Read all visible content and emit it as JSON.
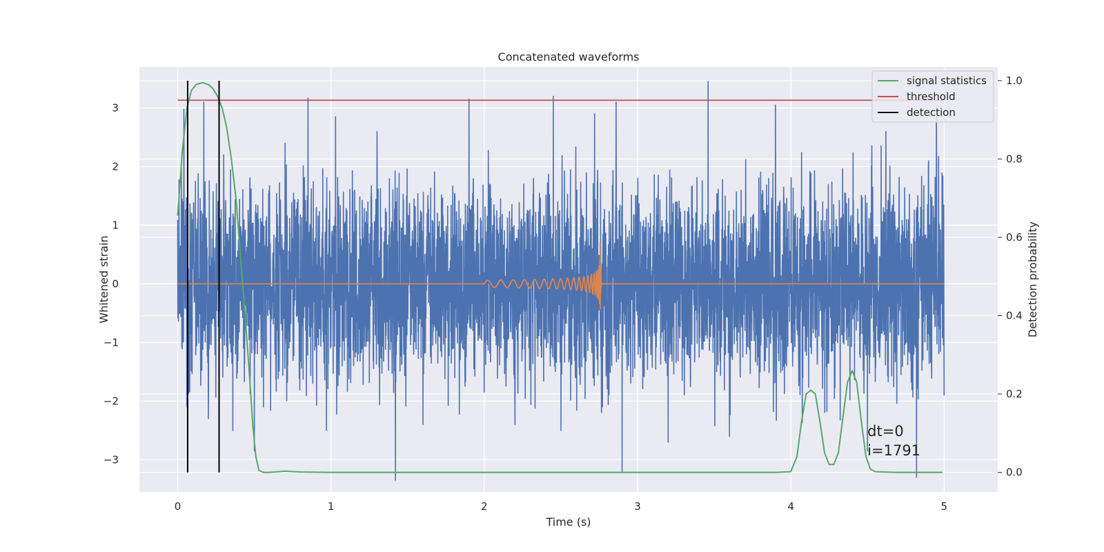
{
  "chart_data": {
    "type": "line",
    "title": "Concatenated waveforms",
    "xlabel": "Time (s)",
    "ylabel": "Whitened strain",
    "ylabel_right": "Detection probability",
    "xlim": [
      -0.25,
      5.35
    ],
    "ylim": [
      -3.55,
      3.7
    ],
    "ylim_right": [
      -0.05,
      1.035
    ],
    "x_ticks": [
      0,
      1,
      2,
      3,
      4,
      5
    ],
    "y_ticks": [
      -3,
      -2,
      -1,
      0,
      1,
      2,
      3
    ],
    "y_ticks_right": [
      0.0,
      0.2,
      0.4,
      0.6,
      0.8,
      1.0
    ],
    "y_tick_labels": [
      "−3",
      "−2",
      "−1",
      "0",
      "1",
      "2",
      "3"
    ],
    "y_tick_labels_right": [
      "0.0",
      "0.2",
      "0.4",
      "0.6",
      "0.8",
      "1.0"
    ],
    "grid": true,
    "legend_position": "top-right",
    "colors": {
      "strain": "#4c72b0",
      "template": "#dd8452",
      "signal": "#55a868",
      "threshold": "#c44e52",
      "detection": "#000000",
      "background": "#eaeaf2",
      "grid": "#ffffff"
    },
    "strain_noise": {
      "x_start": 0.0,
      "x_end": 5.0,
      "sigma": 0.85,
      "axis": "left"
    },
    "spikes": [
      {
        "x": 0.04,
        "y": 2.98
      },
      {
        "x": 0.06,
        "y": -2.1
      },
      {
        "x": 0.17,
        "y": 3.1
      },
      {
        "x": 0.2,
        "y": -2.3
      },
      {
        "x": 0.3,
        "y": 2.2
      },
      {
        "x": 0.36,
        "y": -2.5
      },
      {
        "x": 0.5,
        "y": -2.85
      },
      {
        "x": 0.7,
        "y": 2.4
      },
      {
        "x": 0.85,
        "y": 3.17
      },
      {
        "x": 0.97,
        "y": -2.5
      },
      {
        "x": 1.03,
        "y": 2.85
      },
      {
        "x": 1.3,
        "y": 2.6
      },
      {
        "x": 1.42,
        "y": -3.35
      },
      {
        "x": 1.6,
        "y": -2.4
      },
      {
        "x": 1.9,
        "y": 3.15
      },
      {
        "x": 2.2,
        "y": -2.4
      },
      {
        "x": 2.45,
        "y": 3.2
      },
      {
        "x": 2.5,
        "y": -2.5
      },
      {
        "x": 2.72,
        "y": 2.9
      },
      {
        "x": 2.86,
        "y": 3.1
      },
      {
        "x": 2.9,
        "y": -3.2
      },
      {
        "x": 3.2,
        "y": -2.7
      },
      {
        "x": 3.46,
        "y": 3.45
      },
      {
        "x": 3.6,
        "y": -2.6
      },
      {
        "x": 3.9,
        "y": 3.05
      },
      {
        "x": 4.5,
        "y": -2.85
      },
      {
        "x": 4.62,
        "y": 2.6
      },
      {
        "x": 4.82,
        "y": -3.3
      },
      {
        "x": 4.95,
        "y": 2.9
      }
    ],
    "template_wave": {
      "x_start": 0.0,
      "x_end": 5.0,
      "chirp_start": 2.0,
      "chirp_end": 2.76,
      "peak_amplitude": 0.72,
      "axis": "left"
    },
    "signal_statistics": {
      "axis": "right",
      "x": [
        0.0,
        0.03,
        0.06,
        0.09,
        0.12,
        0.16,
        0.2,
        0.23,
        0.26,
        0.29,
        0.32,
        0.35,
        0.38,
        0.41,
        0.44,
        0.47,
        0.49,
        0.51,
        0.53,
        0.56,
        0.6,
        0.7,
        0.8,
        1.0,
        1.5,
        2.0,
        2.5,
        3.0,
        3.5,
        3.9,
        4.0,
        4.04,
        4.07,
        4.1,
        4.13,
        4.16,
        4.19,
        4.22,
        4.25,
        4.28,
        4.31,
        4.34,
        4.37,
        4.4,
        4.43,
        4.46,
        4.49,
        4.52,
        4.55,
        4.6,
        4.7,
        4.8,
        4.9,
        4.99
      ],
      "y": [
        0.655,
        0.82,
        0.93,
        0.975,
        0.99,
        0.995,
        0.99,
        0.98,
        0.96,
        0.93,
        0.88,
        0.8,
        0.7,
        0.55,
        0.4,
        0.24,
        0.12,
        0.04,
        0.005,
        0.0,
        0.0,
        0.003,
        0.001,
        0.0,
        0.0,
        0.0,
        0.0,
        0.0,
        0.0,
        0.0,
        0.002,
        0.04,
        0.13,
        0.2,
        0.21,
        0.2,
        0.13,
        0.05,
        0.02,
        0.02,
        0.05,
        0.14,
        0.23,
        0.26,
        0.23,
        0.13,
        0.04,
        0.008,
        0.002,
        0.001,
        0.0,
        0.0,
        0.0,
        0.0
      ]
    },
    "threshold": {
      "axis": "right",
      "value": 0.95,
      "x_start": 0.0,
      "x_end": 5.0
    },
    "detections": {
      "axis": "right",
      "x": [
        0.065,
        0.27
      ],
      "y_range": [
        0.0,
        1.0
      ]
    },
    "legend": [
      {
        "label": "signal statistics",
        "series": "signal"
      },
      {
        "label": "threshold",
        "series": "threshold"
      },
      {
        "label": "detection",
        "series": "detection"
      }
    ],
    "annotation": {
      "lines": [
        "dt=0",
        "i=1791"
      ],
      "x": 4.5,
      "axis": "left",
      "y": -2.5
    }
  }
}
